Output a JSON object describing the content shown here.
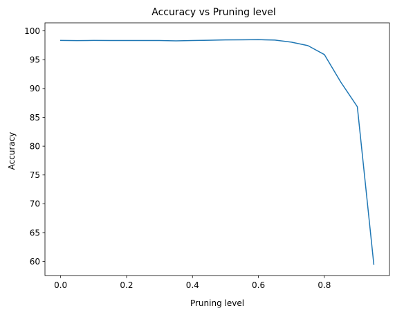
{
  "chart_data": {
    "type": "line",
    "title": "Accuracy vs Pruning level",
    "xlabel": "Pruning level",
    "ylabel": "Accuracy",
    "xlim": [
      -0.0475,
      0.9975
    ],
    "ylim": [
      57.55,
      101.4
    ],
    "xticks": [
      0.0,
      0.2,
      0.4,
      0.6,
      0.8
    ],
    "xtick_labels": [
      "0.0",
      "0.2",
      "0.4",
      "0.6",
      "0.8"
    ],
    "yticks": [
      60,
      65,
      70,
      75,
      80,
      85,
      90,
      95,
      100
    ],
    "ytick_labels": [
      "60",
      "65",
      "70",
      "75",
      "80",
      "85",
      "90",
      "95",
      "100"
    ],
    "grid": false,
    "series": [
      {
        "color": "#1f77b4",
        "x": [
          0.0,
          0.05,
          0.1,
          0.15,
          0.2,
          0.25,
          0.3,
          0.35,
          0.4,
          0.45,
          0.5,
          0.55,
          0.6,
          0.65,
          0.7,
          0.75,
          0.8,
          0.85,
          0.9,
          0.95
        ],
        "y": [
          98.35,
          98.32,
          98.35,
          98.33,
          98.33,
          98.34,
          98.34,
          98.28,
          98.33,
          98.38,
          98.44,
          98.45,
          98.48,
          98.41,
          98.05,
          97.45,
          95.9,
          91.1,
          86.85,
          59.5
        ]
      }
    ]
  }
}
